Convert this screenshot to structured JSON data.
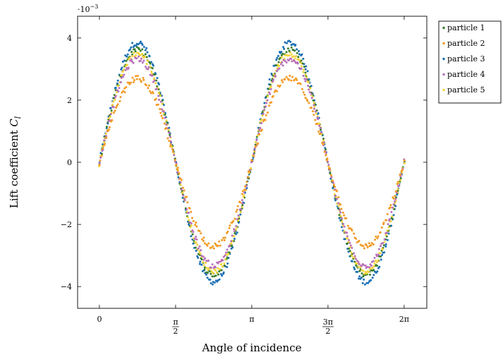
{
  "chart_data": {
    "type": "scatter",
    "title": "",
    "xlabel": "Angle of incidence",
    "ylabel": "Lift coefficient",
    "ylabel_symbol": "C",
    "ylabel_subscript": "l",
    "y_scale_label": "·10",
    "y_scale_exponent": "−3",
    "xlim": [
      -0.45,
      6.75
    ],
    "ylim": [
      -4.7,
      4.7
    ],
    "x_ticks": [
      {
        "value": 0,
        "label": "0"
      },
      {
        "value": 1.5708,
        "label": "π/2",
        "num": "π",
        "den": "2"
      },
      {
        "value": 3.1416,
        "label": "π"
      },
      {
        "value": 4.7124,
        "label": "3π/2",
        "num": "3π",
        "den": "2"
      },
      {
        "value": 6.2832,
        "label": "2π"
      }
    ],
    "y_ticks": [
      {
        "value": -4,
        "label": "−4"
      },
      {
        "value": -2,
        "label": "−2"
      },
      {
        "value": 0,
        "label": "0"
      },
      {
        "value": 2,
        "label": "2"
      },
      {
        "value": 4,
        "label": "4"
      }
    ],
    "grid": false,
    "legend_position": "outside-top-right",
    "series": [
      {
        "name": "particle 1",
        "color": "#3a7d2c",
        "function": "A*sin(2x)",
        "amplitude": 3.62,
        "x_range": [
          0,
          6.2832
        ]
      },
      {
        "name": "particle 2",
        "color": "#f39a24",
        "function": "A*sin(2x)",
        "amplitude": 2.7,
        "x_range": [
          0,
          6.2832
        ]
      },
      {
        "name": "particle 3",
        "color": "#1b6fb5",
        "function": "A*sin(2x)",
        "amplitude": 3.85,
        "x_range": [
          0,
          6.2832
        ]
      },
      {
        "name": "particle 4",
        "color": "#b86fb8",
        "function": "A*sin(2x)",
        "amplitude": 3.33,
        "x_range": [
          0,
          6.2832
        ]
      },
      {
        "name": "particle 5",
        "color": "#f2d43b",
        "function": "A*sin(2x)",
        "amplitude": 3.5,
        "x_range": [
          0,
          6.2832
        ]
      }
    ]
  }
}
